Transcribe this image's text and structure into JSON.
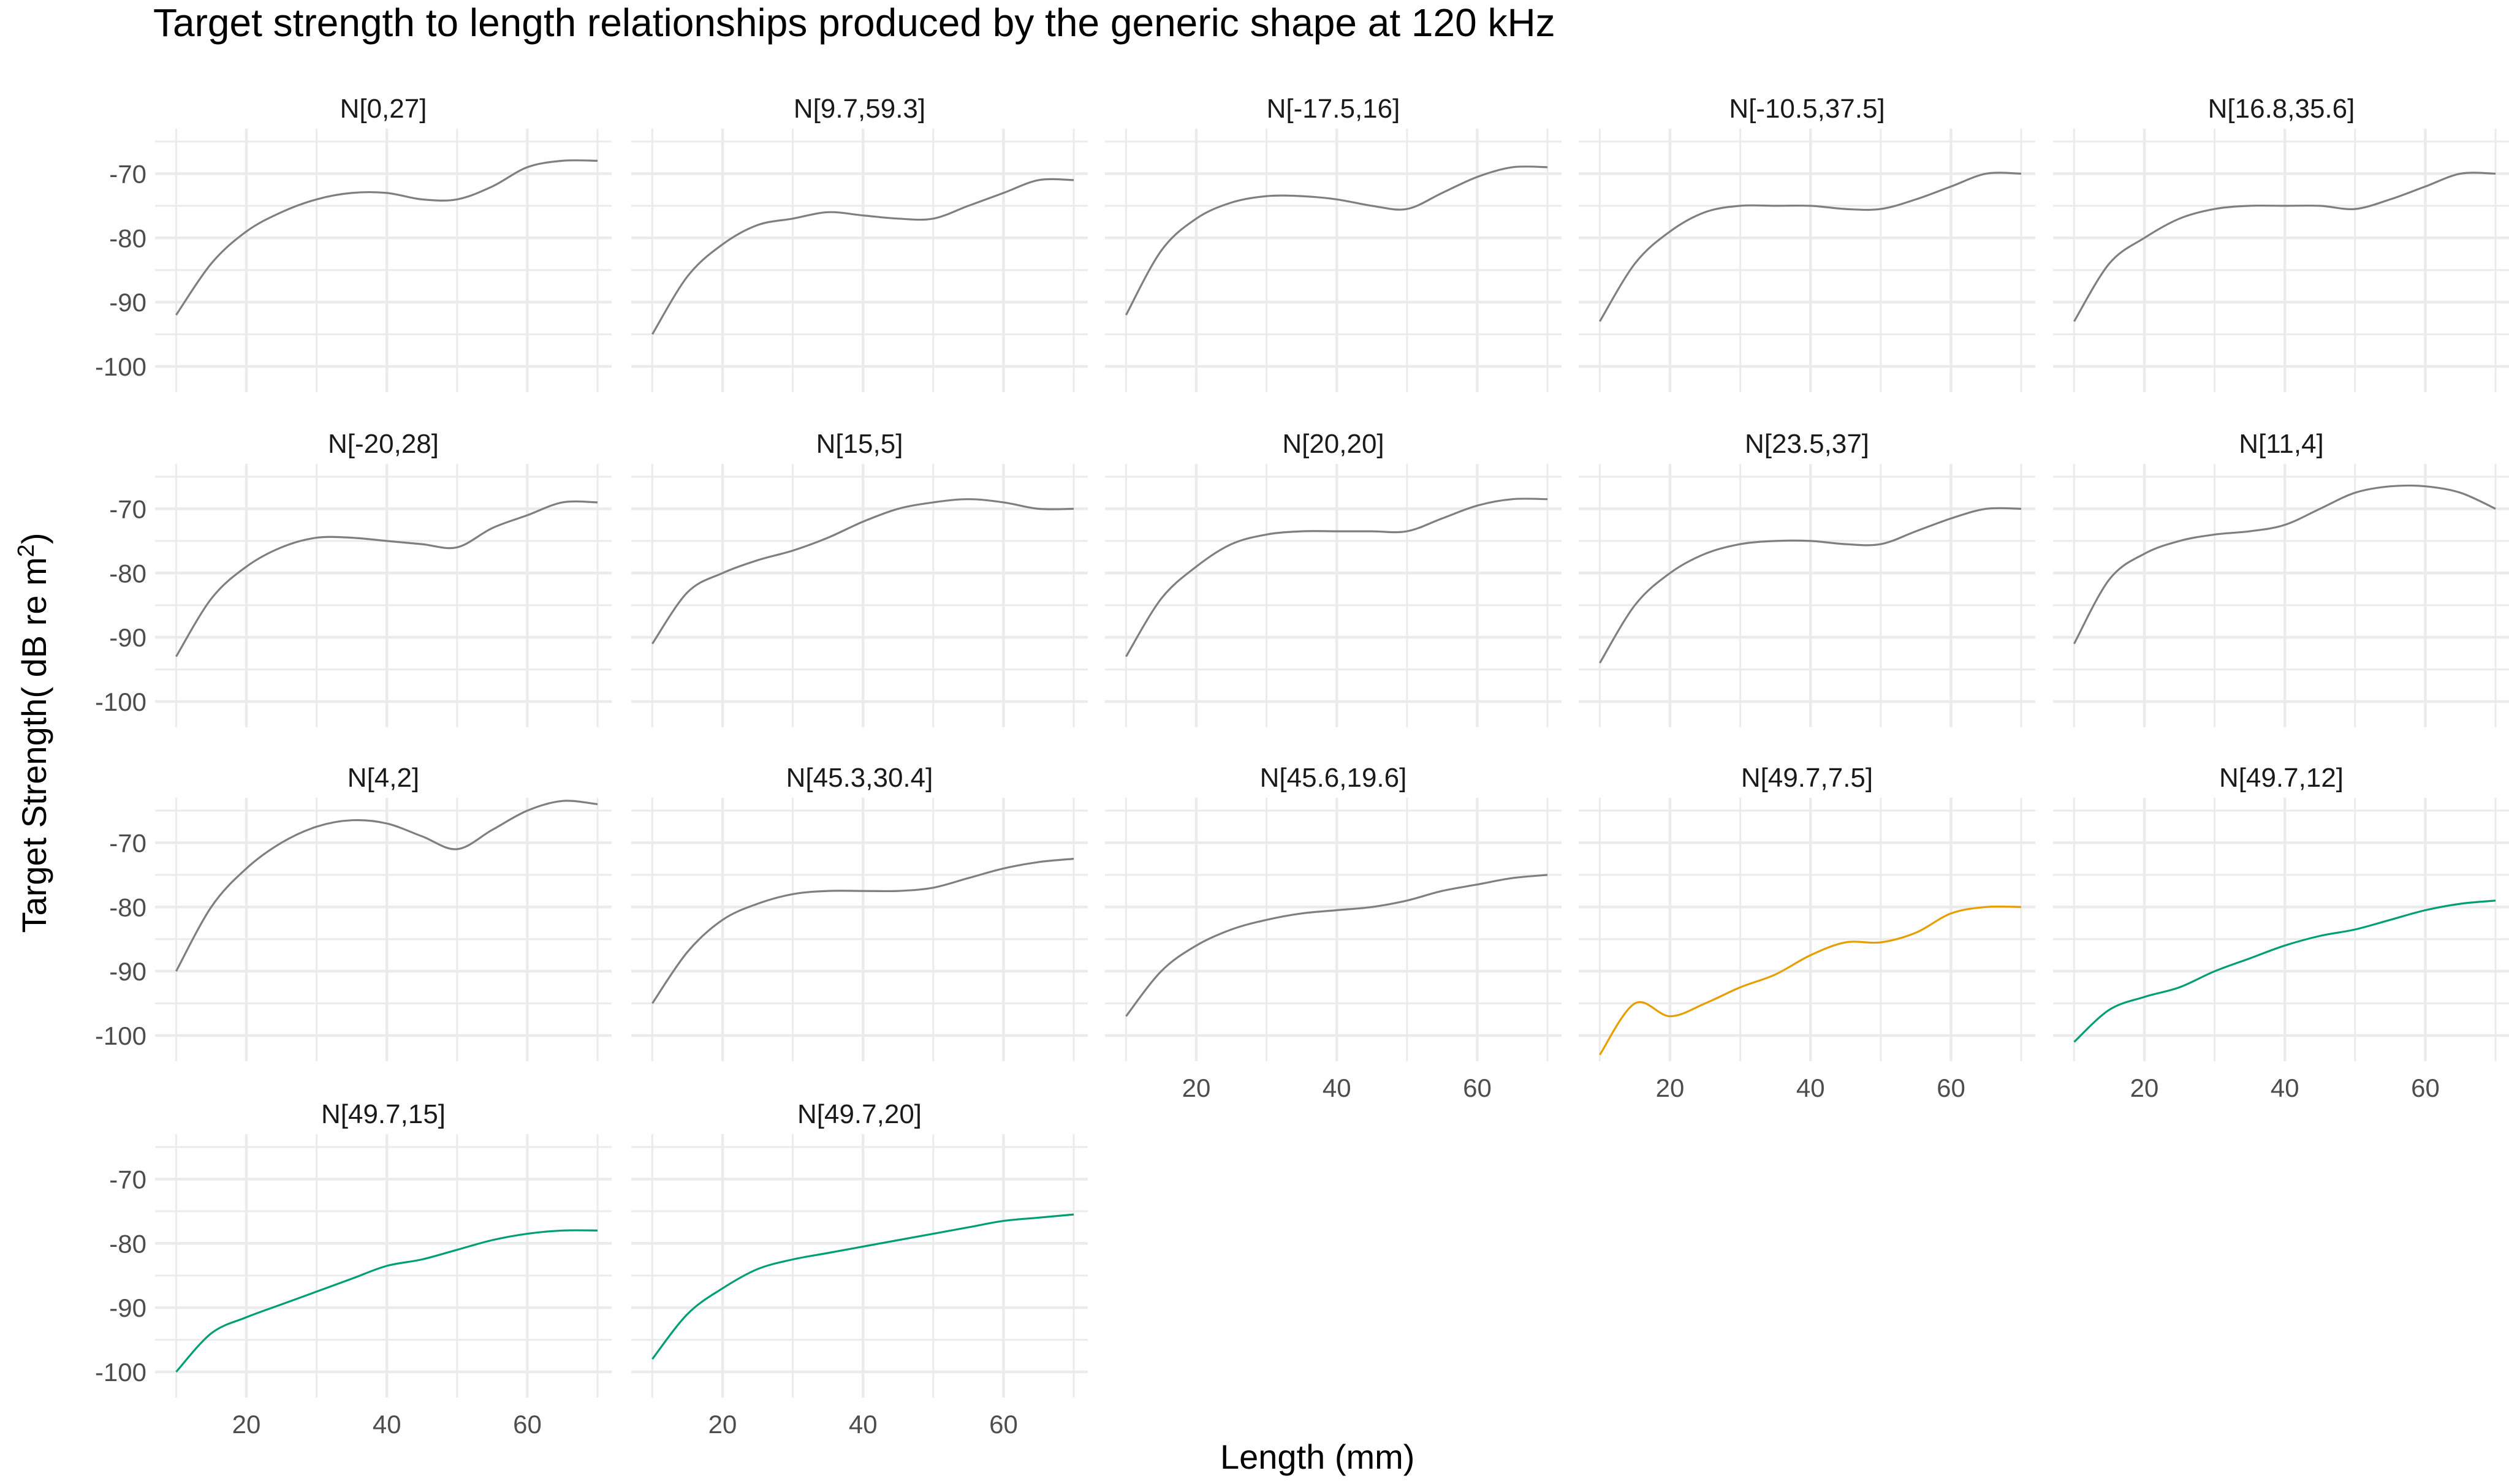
{
  "chart_data": {
    "type": "line",
    "title": "Target strength to length relationships produced by the generic shape at 120 kHz",
    "xlabel": "Length (mm)",
    "ylabel_main": "Target Strength( dB re m",
    "ylabel_sup": "2",
    "ylabel_close": ")",
    "xlim": [
      7,
      72
    ],
    "ylim": [
      -104,
      -63
    ],
    "xticks": [
      20,
      40,
      60
    ],
    "yticks": [
      -70,
      -80,
      -90,
      -100
    ],
    "grid": true,
    "colors": {
      "default": "#7f7f7f",
      "orange": "#e69f00",
      "green": "#009e73",
      "grid": "#ebebeb"
    },
    "x": [
      10,
      15,
      20,
      25,
      30,
      35,
      40,
      45,
      50,
      55,
      60,
      65,
      70
    ],
    "panels": [
      {
        "label": "N[0,27]",
        "color": "default",
        "y": [
          -92,
          -84,
          -79,
          -76,
          -74,
          -73,
          -73,
          -74,
          -74,
          -72,
          -69,
          -68,
          -68
        ]
      },
      {
        "label": "N[9.7,59.3]",
        "color": "default",
        "y": [
          -95,
          -86,
          -81,
          -78,
          -77,
          -76,
          -76.5,
          -77,
          -77,
          -75,
          -73,
          -71,
          -71
        ]
      },
      {
        "label": "N[-17.5,16]",
        "color": "default",
        "y": [
          -92,
          -82,
          -77,
          -74.5,
          -73.5,
          -73.5,
          -74,
          -75,
          -75.5,
          -73,
          -70.5,
          -69,
          -69
        ]
      },
      {
        "label": "N[-10.5,37.5]",
        "color": "default",
        "y": [
          -93,
          -84,
          -79,
          -76,
          -75,
          -75,
          -75,
          -75.5,
          -75.5,
          -74,
          -72,
          -70,
          -70
        ]
      },
      {
        "label": "N[16.8,35.6]",
        "color": "default",
        "y": [
          -93,
          -84,
          -80,
          -77,
          -75.5,
          -75,
          -75,
          -75,
          -75.5,
          -74,
          -72,
          -70,
          -70
        ]
      },
      {
        "label": "N[-20,28]",
        "color": "default",
        "y": [
          -93,
          -84,
          -79,
          -76,
          -74.5,
          -74.5,
          -75,
          -75.5,
          -76,
          -73,
          -71,
          -69,
          -69
        ]
      },
      {
        "label": "N[15,5]",
        "color": "default",
        "y": [
          -91,
          -83,
          -80,
          -78,
          -76.5,
          -74.5,
          -72,
          -70,
          -69,
          -68.5,
          -69,
          -70,
          -70
        ]
      },
      {
        "label": "N[20,20]",
        "color": "default",
        "y": [
          -93,
          -84,
          -79,
          -75.5,
          -74,
          -73.5,
          -73.5,
          -73.5,
          -73.5,
          -71.5,
          -69.5,
          -68.5,
          -68.5
        ]
      },
      {
        "label": "N[23.5,37]",
        "color": "default",
        "y": [
          -94,
          -85,
          -80,
          -77,
          -75.5,
          -75,
          -75,
          -75.5,
          -75.5,
          -73.5,
          -71.5,
          -70,
          -70
        ]
      },
      {
        "label": "N[11,4]",
        "color": "default",
        "y": [
          -91,
          -81,
          -77,
          -75,
          -74,
          -73.5,
          -72.5,
          -70,
          -67.5,
          -66.5,
          -66.5,
          -67.5,
          -70
        ]
      },
      {
        "label": "N[4,2]",
        "color": "default",
        "y": [
          -90,
          -80,
          -74,
          -70,
          -67.5,
          -66.5,
          -67,
          -69,
          -71,
          -68,
          -65,
          -63.5,
          -64
        ]
      },
      {
        "label": "N[45.3,30.4]",
        "color": "default",
        "y": [
          -95,
          -87,
          -82,
          -79.5,
          -78,
          -77.5,
          -77.5,
          -77.5,
          -77,
          -75.5,
          -74,
          -73,
          -72.5
        ]
      },
      {
        "label": "N[45.6,19.6]",
        "color": "default",
        "y": [
          -97,
          -90,
          -86,
          -83.5,
          -82,
          -81,
          -80.5,
          -80,
          -79,
          -77.5,
          -76.5,
          -75.5,
          -75
        ]
      },
      {
        "label": "N[49.7,7.5]",
        "color": "orange",
        "y": [
          -103,
          -95,
          -97,
          -95,
          -92.5,
          -90.5,
          -87.5,
          -85.5,
          -85.5,
          -84,
          -81,
          -80,
          -80
        ]
      },
      {
        "label": "N[49.7,12]",
        "color": "green",
        "y": [
          -101,
          -96,
          -94,
          -92.5,
          -90,
          -88,
          -86,
          -84.5,
          -83.5,
          -82,
          -80.5,
          -79.5,
          -79
        ]
      },
      {
        "label": "N[49.7,15]",
        "color": "green",
        "y": [
          -100,
          -94,
          -91.5,
          -89.5,
          -87.5,
          -85.5,
          -83.5,
          -82.5,
          -81,
          -79.5,
          -78.5,
          -78,
          -78
        ]
      },
      {
        "label": "N[49.7,20]",
        "color": "green",
        "y": [
          -98,
          -91,
          -87,
          -84,
          -82.5,
          -81.5,
          -80.5,
          -79.5,
          -78.5,
          -77.5,
          -76.5,
          -76,
          -75.5
        ]
      }
    ]
  }
}
